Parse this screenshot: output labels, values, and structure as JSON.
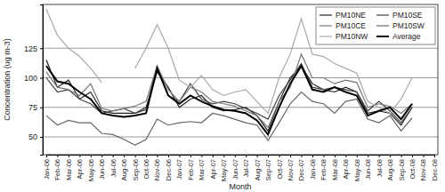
{
  "chart_data": {
    "type": "line",
    "x_label": "Month",
    "y_label": "Concentration (ug m-3)",
    "categories": [
      "Jan-06",
      "Feb-06",
      "Mar-06",
      "Apr-06",
      "May-06",
      "Jun-06",
      "Jul-06",
      "Aug-06",
      "Sep-06",
      "Oct-06",
      "Nov-06",
      "Dec-06",
      "Jan-07",
      "Feb-07",
      "Mar-07",
      "Apr-07",
      "May-07",
      "Jun-07",
      "Jul-07",
      "Aug-07",
      "Sep-07",
      "Oct-07",
      "Nov-07",
      "Dec-07",
      "Jan-08",
      "Feb-08",
      "Mar-08",
      "Apr-08",
      "May-08",
      "Jun-08",
      "Jul-08",
      "Aug-08",
      "Sep-08",
      "Oct-08",
      "Nov-08",
      "Dec-08"
    ],
    "series": [
      {
        "name": "PM10NE",
        "color": "#222222",
        "values": [
          115,
          92,
          98,
          82,
          88,
          72,
          70,
          70,
          70,
          75,
          105,
          92,
          75,
          82,
          85,
          75,
          72,
          73,
          75,
          68,
          55,
          80,
          100,
          110,
          95,
          90,
          88,
          92,
          88,
          70,
          72,
          70,
          60,
          75,
          null,
          null
        ]
      },
      {
        "name": "PM10SE",
        "color": "#444444",
        "values": [
          100,
          88,
          90,
          82,
          78,
          70,
          72,
          74,
          70,
          73,
          110,
          85,
          80,
          95,
          82,
          78,
          80,
          78,
          74,
          70,
          65,
          85,
          98,
          112,
          92,
          90,
          92,
          90,
          88,
          72,
          80,
          72,
          62,
          75,
          null,
          null
        ]
      },
      {
        "name": "PM10CE",
        "color": "#777777",
        "values": [
          105,
          92,
          90,
          85,
          95,
          74,
          72,
          74,
          76,
          80,
          110,
          90,
          80,
          92,
          88,
          80,
          78,
          76,
          72,
          68,
          58,
          80,
          92,
          120,
          100,
          100,
          95,
          98,
          96,
          75,
          78,
          76,
          70,
          78,
          null,
          null
        ]
      },
      {
        "name": "PM10SW",
        "color": "#666666",
        "values": [
          68,
          60,
          64,
          62,
          62,
          53,
          52,
          48,
          43,
          48,
          65,
          60,
          62,
          63,
          62,
          70,
          68,
          65,
          62,
          60,
          47,
          62,
          78,
          88,
          80,
          78,
          70,
          80,
          82,
          65,
          62,
          68,
          55,
          66,
          null,
          null
        ]
      },
      {
        "name": "PM10NW",
        "color": "#aaaaaa",
        "values": [
          158,
          136,
          125,
          118,
          108,
          96,
          null,
          null,
          108,
          125,
          145,
          125,
          98,
          92,
          102,
          90,
          85,
          88,
          90,
          80,
          70,
          100,
          120,
          150,
          120,
          118,
          112,
          108,
          104,
          80,
          75,
          70,
          82,
          100,
          null,
          null
        ]
      },
      {
        "name": "Average",
        "color": "#000000",
        "values": [
          110,
          97,
          95,
          88,
          82,
          70,
          68,
          67,
          68,
          70,
          108,
          85,
          78,
          85,
          80,
          76,
          73,
          72,
          70,
          64,
          52,
          75,
          95,
          110,
          90,
          88,
          92,
          88,
          85,
          68,
          72,
          75,
          65,
          78,
          null,
          null
        ]
      }
    ],
    "ylim": [
      35,
      162
    ],
    "yticks": [
      50,
      75,
      100,
      125
    ],
    "grid": true,
    "legend": "top-right"
  }
}
